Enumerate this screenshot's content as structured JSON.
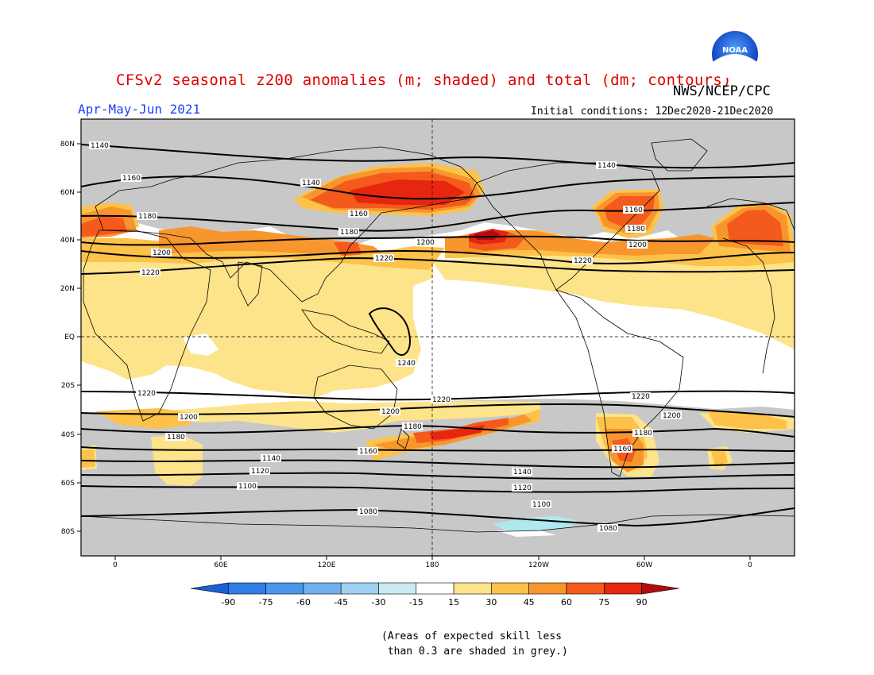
{
  "header": {
    "title": "CFSv2 seasonal z200 anomalies (m; shaded) and total (dm; contours)",
    "agency": "NWS/NCEP/CPC",
    "period": "Apr-May-Jun 2021",
    "initial_conditions": "Initial conditions: 12Dec2020-21Dec2020"
  },
  "logo": {
    "text": "NOAA"
  },
  "map": {
    "lat_labels": [
      "80N",
      "60N",
      "40N",
      "20N",
      "EQ",
      "20S",
      "40S",
      "60S",
      "80S"
    ],
    "lon_labels": [
      "0",
      "60E",
      "120E",
      "180",
      "120W",
      "60W",
      "0"
    ],
    "contours": [
      {
        "value": "1140",
        "labels": [
          "1140",
          "1140",
          "1140"
        ]
      },
      {
        "value": "1160",
        "labels": [
          "1160",
          "1160",
          "1160"
        ]
      },
      {
        "value": "1180",
        "labels": [
          "1180",
          "1180",
          "1180"
        ]
      },
      {
        "value": "1200",
        "labels": [
          "1200",
          "1200",
          "1200"
        ]
      },
      {
        "value": "1220",
        "labels": [
          "1220",
          "1220",
          "1220"
        ]
      },
      {
        "value": "1240",
        "labels": [
          "1240"
        ]
      },
      {
        "value": "1220",
        "labels": [
          "1220",
          "1220",
          "1220"
        ]
      },
      {
        "value": "1200",
        "labels": [
          "1200",
          "1200",
          "1200"
        ]
      },
      {
        "value": "1180",
        "labels": [
          "1180",
          "1180",
          "1180"
        ]
      },
      {
        "value": "1160",
        "labels": [
          "1160",
          "1160"
        ]
      },
      {
        "value": "1140",
        "labels": [
          "1140",
          "1140"
        ]
      },
      {
        "value": "1120",
        "labels": [
          "1120",
          "1120"
        ]
      },
      {
        "value": "1100",
        "labels": [
          "1100"
        ]
      },
      {
        "value": "1080",
        "labels": [
          "1080",
          "1080"
        ]
      }
    ]
  },
  "colorbar": {
    "labels": [
      "-90",
      "-75",
      "-60",
      "-45",
      "-30",
      "-15",
      "15",
      "30",
      "45",
      "60",
      "75",
      "90"
    ],
    "colors": [
      "#1a5fd6",
      "#2e7ee6",
      "#4a96ea",
      "#6fb0ee",
      "#9fd0f2",
      "#c8ecf2",
      "#ffffff",
      "#fde38a",
      "#fcc24a",
      "#f8962e",
      "#f45a1c",
      "#e6260f",
      "#b00d0d"
    ]
  },
  "colors": {
    "skill_grey": "#c8c8c8",
    "anomaly_15_30": "#fde38a",
    "anomaly_30_45": "#fcc24a",
    "anomaly_45_60": "#f8962e",
    "anomaly_60_75": "#f45a1c",
    "anomaly_75_90": "#e6260f",
    "anomaly_90": "#b00d0d",
    "anomaly_neg": "#b0e8f0"
  },
  "footnote": "(Areas of expected skill less\n than 0.3 are shaded in grey.)"
}
